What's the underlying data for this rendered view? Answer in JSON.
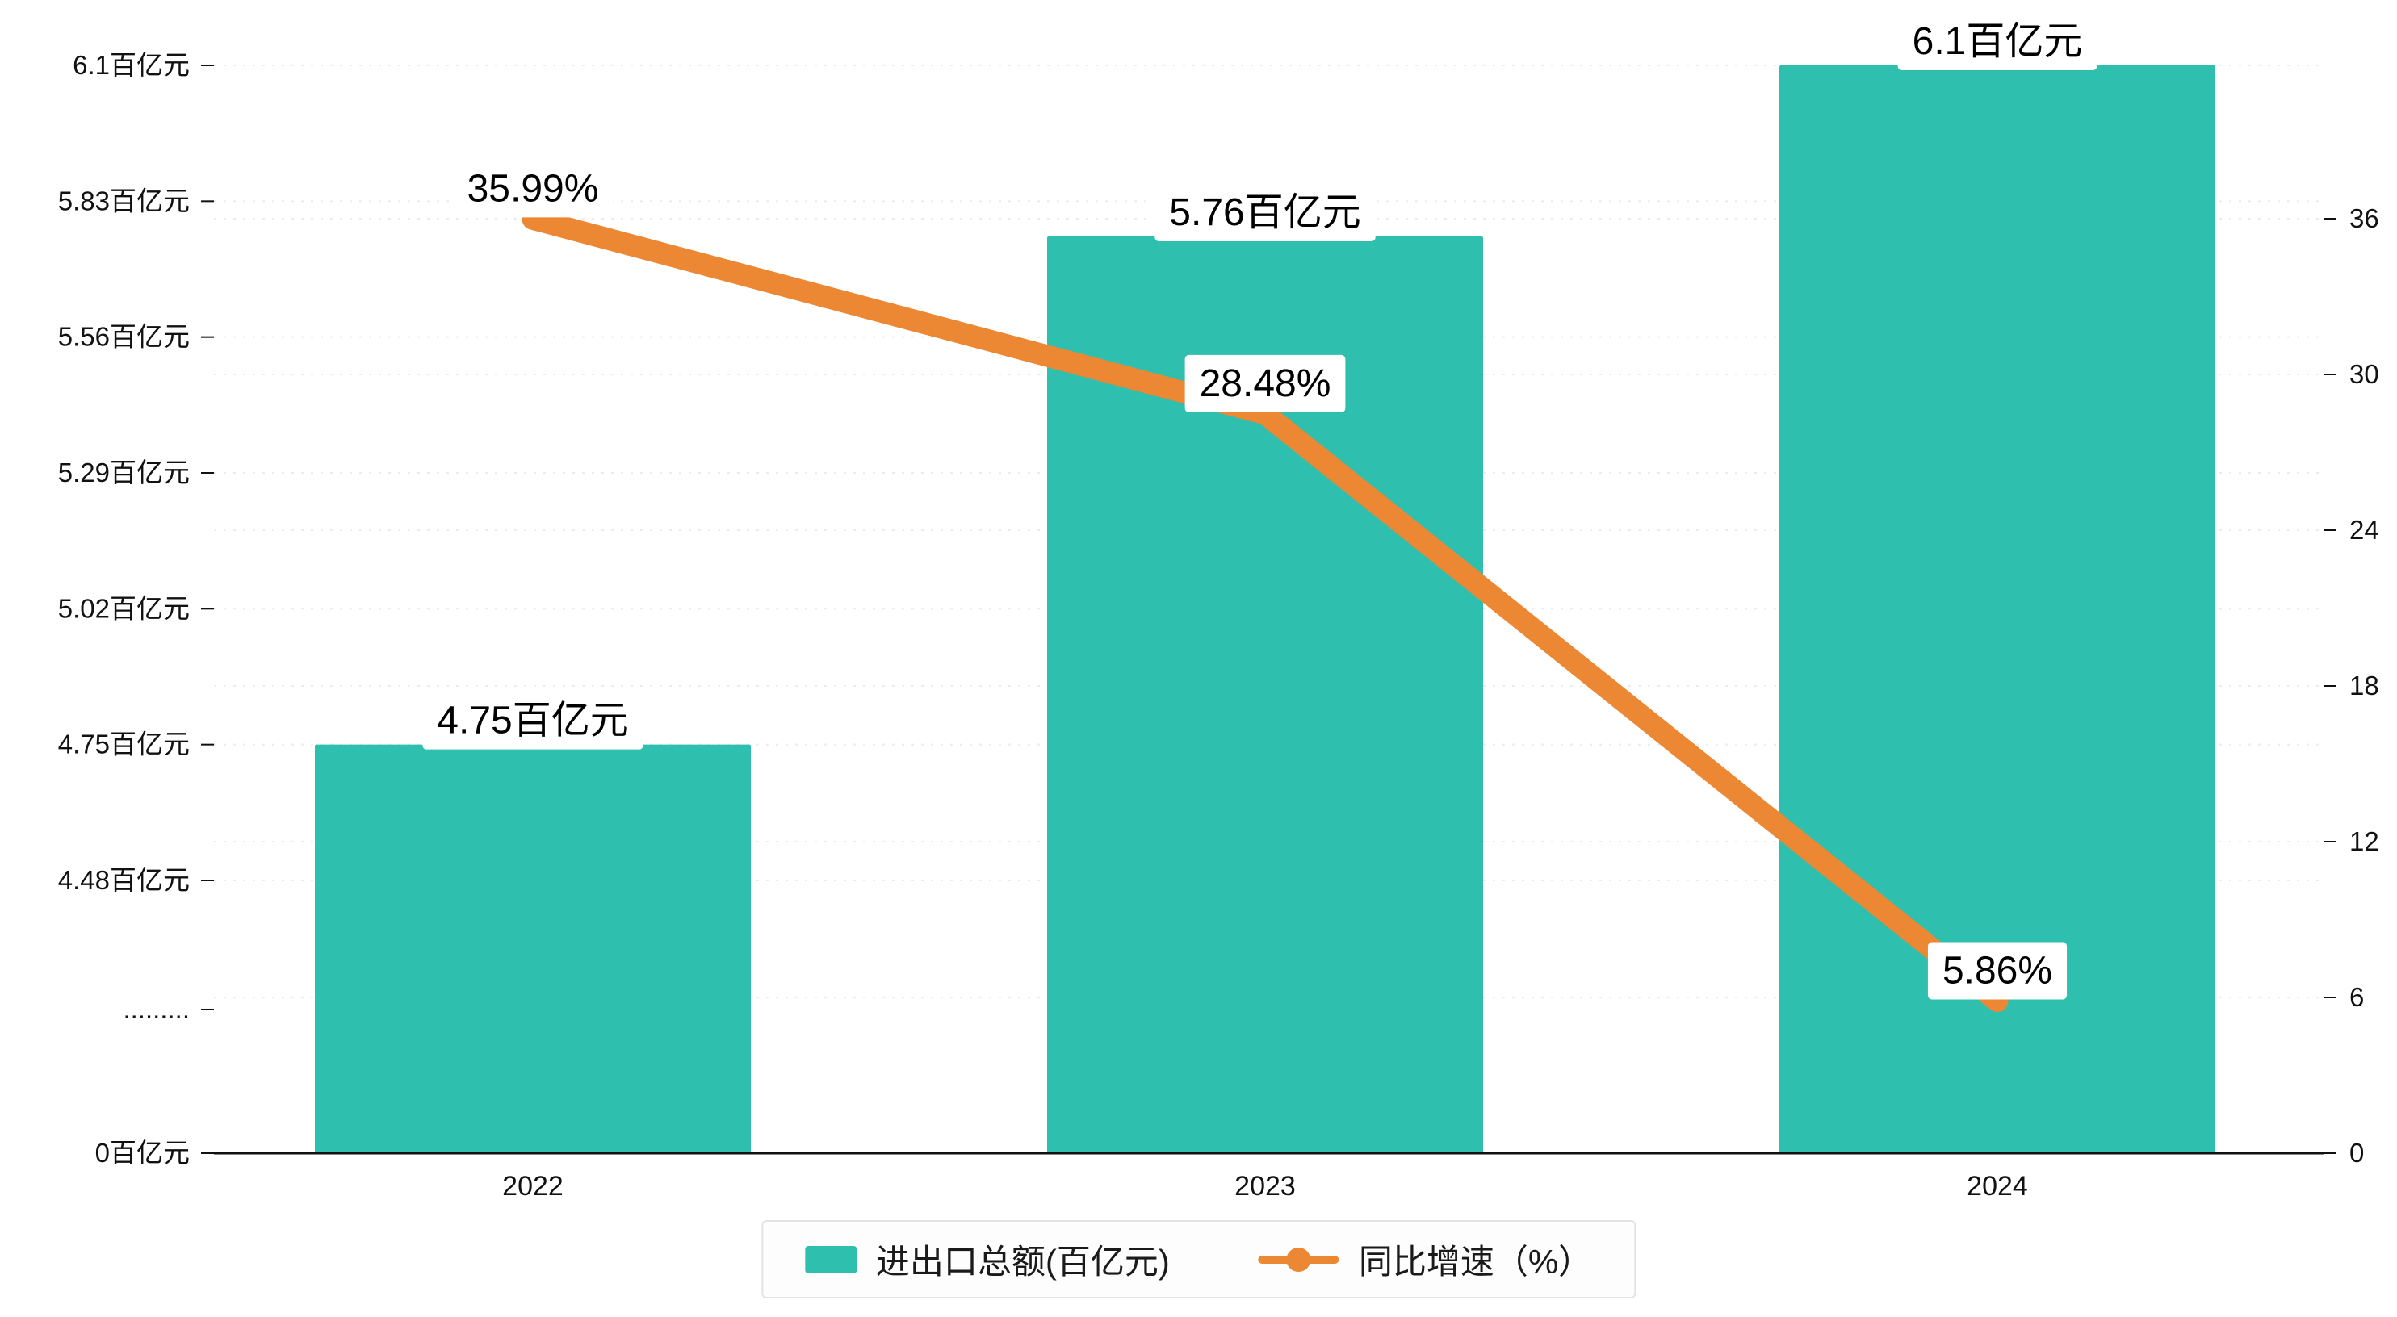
{
  "chart_data": {
    "type": "bar+line",
    "categories": [
      "2022",
      "2023",
      "2024"
    ],
    "series": [
      {
        "name": "进出口总额(百亿元)",
        "type": "bar",
        "axis": "left",
        "color": "#2FBFAF",
        "values": [
          4.75,
          5.76,
          6.1
        ],
        "labels": [
          "4.75百亿元",
          "5.76百亿元",
          "6.1百亿元"
        ]
      },
      {
        "name": "同比增速（%）",
        "type": "line",
        "axis": "right",
        "color": "#EC8733",
        "values": [
          35.99,
          28.48,
          5.86
        ],
        "labels": [
          "35.99%",
          "28.48%",
          "5.86%"
        ]
      }
    ],
    "left_axis": {
      "tick_labels": [
        "6.1百亿元",
        "5.83百亿元",
        "5.56百亿元",
        "5.29百亿元",
        "5.02百亿元",
        "4.75百亿元",
        "4.48百亿元",
        ".........",
        "0百亿元"
      ],
      "tick_values": [
        6.1,
        5.83,
        5.56,
        5.29,
        5.02,
        4.75,
        4.48,
        null,
        0
      ],
      "has_break": true
    },
    "right_axis": {
      "tick_labels": [
        "36",
        "30",
        "24",
        "18",
        "12",
        "6",
        "0"
      ],
      "min": 0,
      "max": 36
    },
    "grid": true,
    "legend_position": "bottom"
  },
  "styles": {
    "bar_color": "#2FBFAF",
    "line_color": "#EC8733",
    "grid_color": "#ececec",
    "axis_color": "#111111",
    "text_color": "#111111",
    "label_bg": "#ffffff"
  }
}
